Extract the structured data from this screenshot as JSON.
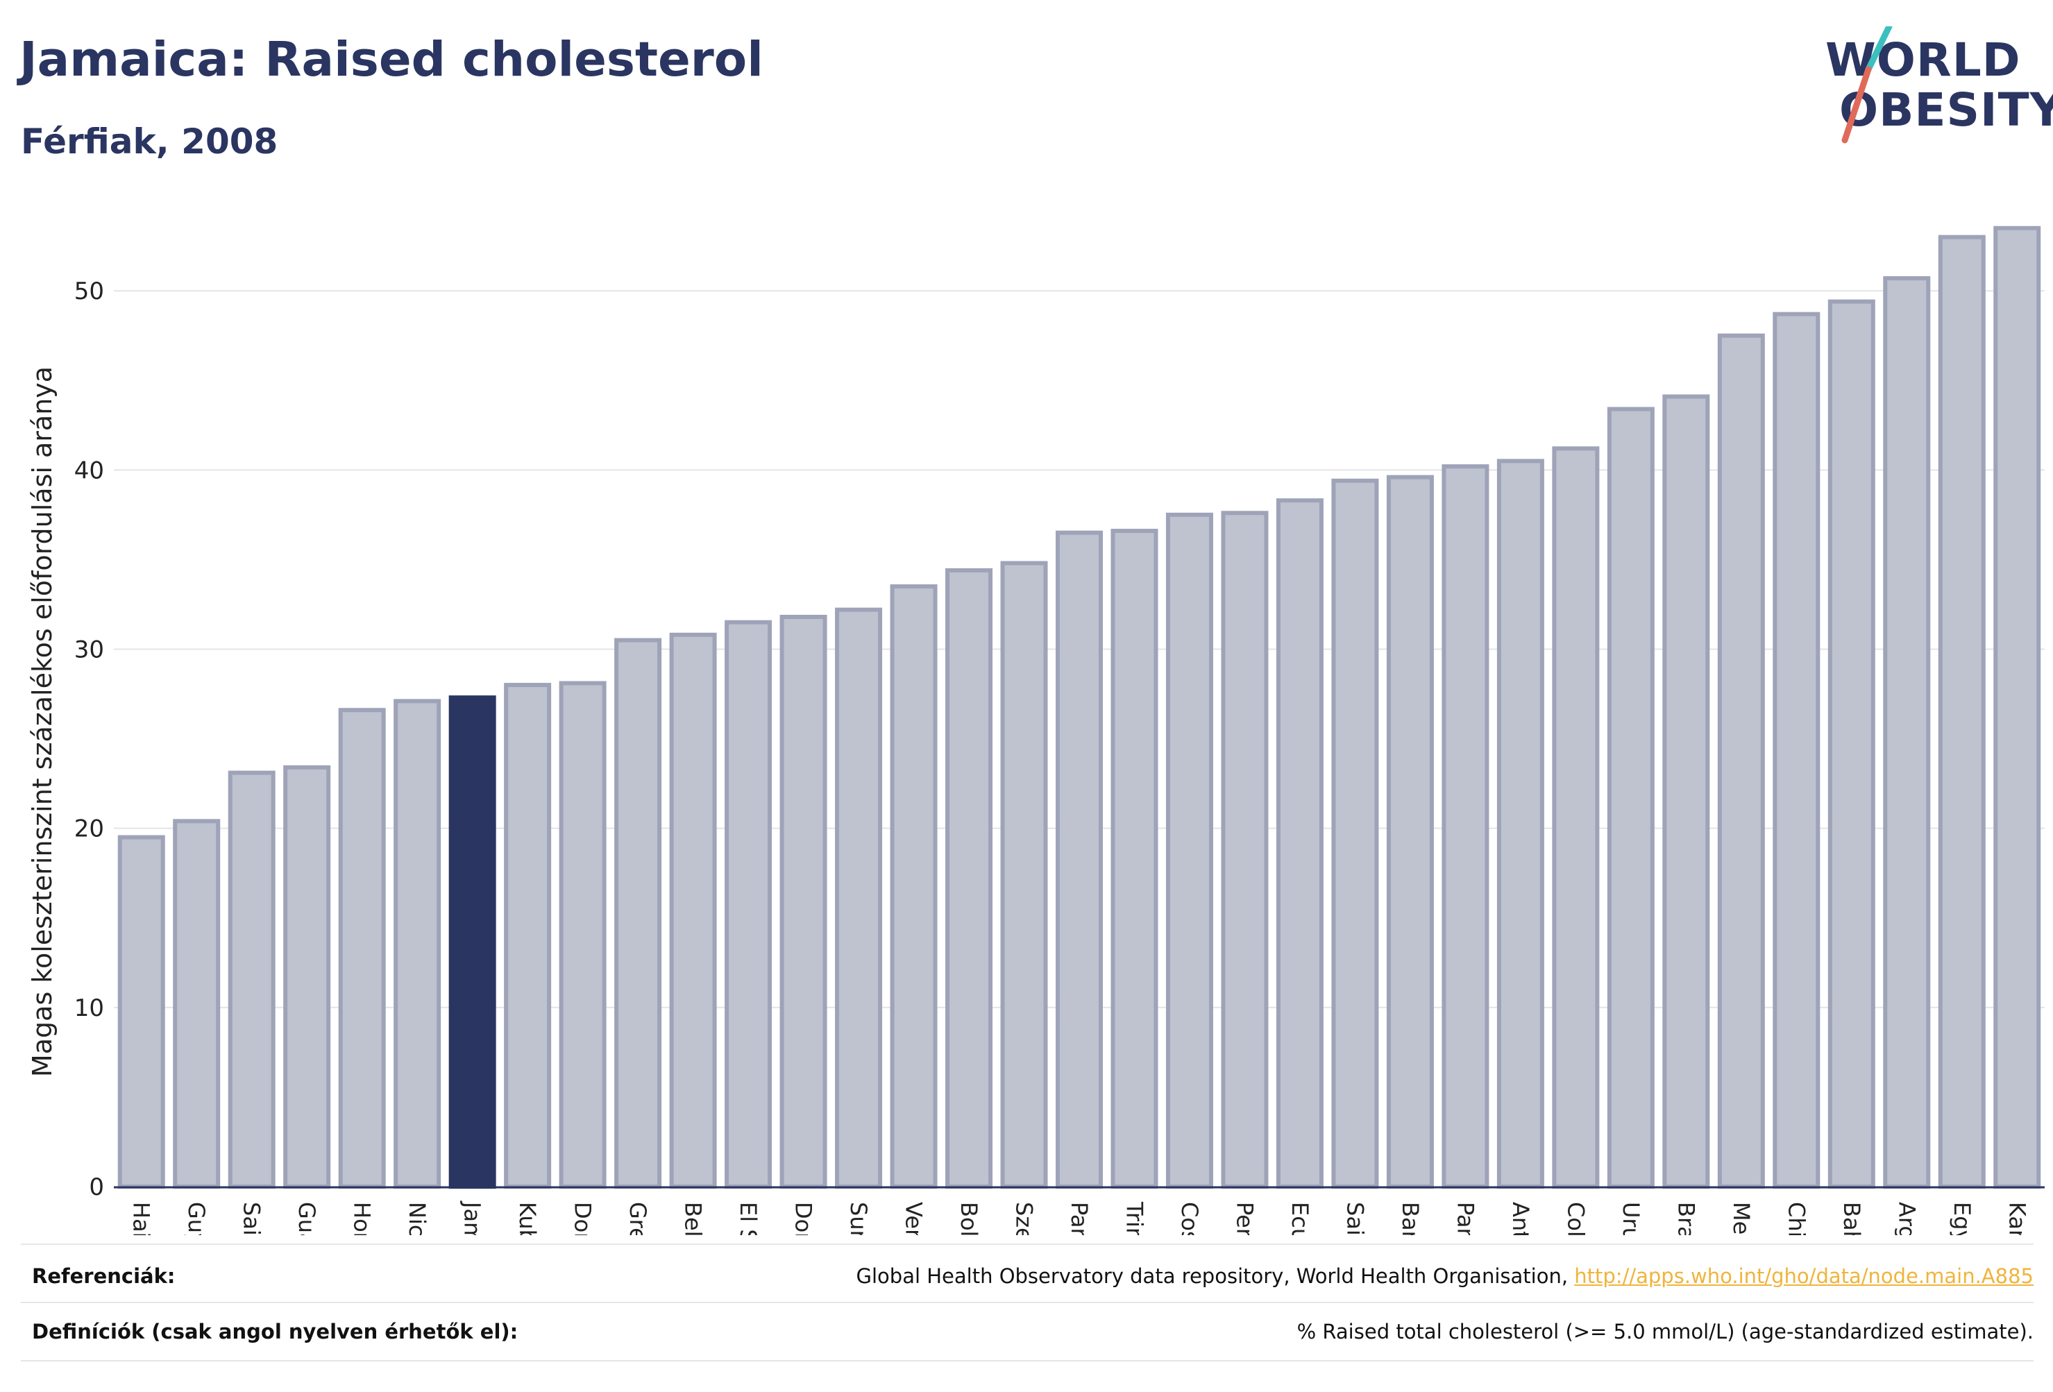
{
  "header": {
    "title": "Jamaica: Raised cholesterol",
    "subtitle": "Férfiak, 2008"
  },
  "logo": {
    "line1": "WORLD",
    "line2": "OBESITY",
    "accent_teal": "#3bbfbf",
    "accent_red": "#e06a5a"
  },
  "colors": {
    "bar_fill": "#bfc2cf",
    "bar_stroke": "#9ea3b8",
    "highlight": "#2a3561",
    "grid": "#e5e5e5",
    "axis": "#2a3561"
  },
  "chart_data": {
    "type": "bar",
    "title": "Jamaica: Raised cholesterol",
    "subtitle": "Férfiak, 2008",
    "xlabel": "",
    "ylabel": "Magas koleszterinszint százalékos előfordulási aránya",
    "ylim": [
      0,
      55
    ],
    "yticks": [
      0,
      10,
      20,
      30,
      40,
      50
    ],
    "grid": true,
    "highlight": "Jamaica",
    "categories": [
      "Haiti",
      "Guyana",
      "Saint Vincent é",
      "Guatemala",
      "Honduras",
      "Nicaragua",
      "Jamaica",
      "Kuba",
      "Dominikai Közt",
      "Grenada",
      "Belize",
      "El Salvador",
      "Dominikai Közö",
      "Suriname",
      "Venezuela",
      "Bolívia",
      "Szent Lucia",
      "Paraguay",
      "Trinidad és Tob",
      "Costa Rica",
      "Peru",
      "Ecuador",
      "Saint Kitts és N",
      "Barbados",
      "Panama",
      "Antigua és Bar",
      "Colombia",
      "Uruguay",
      "Brazília",
      "Mexikó",
      "Chile",
      "Bahama-szigetek",
      "Argentína",
      "Egyesült Állam",
      "Kanada"
    ],
    "values": [
      19.5,
      20.4,
      23.1,
      23.4,
      26.6,
      27.1,
      27.3,
      28.0,
      28.1,
      30.5,
      30.8,
      31.5,
      31.8,
      32.2,
      33.5,
      34.4,
      34.8,
      36.5,
      36.6,
      37.5,
      37.6,
      38.3,
      39.4,
      39.6,
      40.2,
      40.5,
      41.2,
      43.4,
      44.1,
      47.5,
      48.7,
      49.4,
      50.7,
      53.0,
      53.5
    ]
  },
  "footer": {
    "references_label": "Referenciák:",
    "references_text": "Global Health Observatory data repository, World Health Organisation, ",
    "references_link": "http://apps.who.int/gho/data/node.main.A885",
    "definitions_label": "Definíciók (csak angol nyelven érhetők el):",
    "definitions_text": "% Raised total cholesterol (>= 5.0 mmol/L) (age-standardized estimate)."
  }
}
